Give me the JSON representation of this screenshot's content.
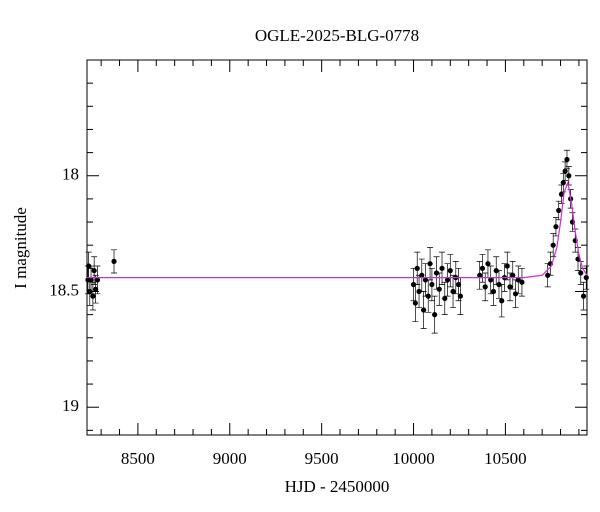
{
  "chart_data": {
    "type": "scatter",
    "title": "OGLE-2025-BLG-0778",
    "xlabel": "HJD - 2450000",
    "ylabel": "I magnitude",
    "xlim": [
      8223,
      10944
    ],
    "ylim": [
      17.5,
      19.12
    ],
    "y_inverted": true,
    "xticks": [
      8500,
      9000,
      9500,
      10000,
      10500
    ],
    "xminorticks": [
      8300,
      8400,
      8600,
      8700,
      8800,
      8900,
      9100,
      9200,
      9300,
      9400,
      9600,
      9700,
      9800,
      9900,
      10100,
      10200,
      10300,
      10400,
      10600,
      10700,
      10800,
      10900
    ],
    "yticks": [
      18,
      18.5,
      19
    ],
    "yminorticks": [
      17.6,
      17.7,
      17.8,
      17.9,
      18.1,
      18.2,
      18.3,
      18.4,
      18.6,
      18.7,
      18.8,
      18.9,
      19.1
    ],
    "series": [
      {
        "color": "#000000",
        "x": [
          8228,
          8232,
          8238,
          8245,
          8255,
          8262,
          8270,
          8280,
          8370,
          10000,
          10010,
          10020,
          10030,
          10045,
          10055,
          10065,
          10080,
          10090,
          10100,
          10115,
          10125,
          10140,
          10155,
          10170,
          10185,
          10200,
          10215,
          10230,
          10245,
          10255,
          10360,
          10375,
          10390,
          10405,
          10420,
          10435,
          10450,
          10465,
          10480,
          10495,
          10510,
          10525,
          10540,
          10555,
          10570,
          10590,
          10730,
          10745,
          10760,
          10775,
          10790,
          10805,
          10815,
          10825,
          10835,
          10845,
          10855,
          10865,
          10880,
          10895,
          10910,
          10925,
          10940
        ],
        "values": [
          18.45,
          18.39,
          18.5,
          18.45,
          18.52,
          18.41,
          18.49,
          18.45,
          18.37,
          18.47,
          18.55,
          18.4,
          18.5,
          18.43,
          18.58,
          18.45,
          18.52,
          18.38,
          18.47,
          18.6,
          18.42,
          18.49,
          18.4,
          18.53,
          18.45,
          18.41,
          18.5,
          18.44,
          18.47,
          18.52,
          18.43,
          18.4,
          18.48,
          18.38,
          18.45,
          18.5,
          18.41,
          18.47,
          18.54,
          18.44,
          18.39,
          18.48,
          18.43,
          18.51,
          18.45,
          18.46,
          18.43,
          18.38,
          18.3,
          18.22,
          18.15,
          18.08,
          18.03,
          17.98,
          17.93,
          18.0,
          18.1,
          18.2,
          18.28,
          18.36,
          18.42,
          18.52,
          18.44
        ],
        "errors": [
          0.06,
          0.06,
          0.06,
          0.06,
          0.06,
          0.06,
          0.06,
          0.06,
          0.05,
          0.07,
          0.08,
          0.07,
          0.07,
          0.07,
          0.08,
          0.07,
          0.07,
          0.07,
          0.07,
          0.08,
          0.07,
          0.07,
          0.07,
          0.07,
          0.07,
          0.07,
          0.07,
          0.07,
          0.07,
          0.08,
          0.06,
          0.06,
          0.06,
          0.06,
          0.06,
          0.06,
          0.06,
          0.06,
          0.07,
          0.06,
          0.06,
          0.06,
          0.06,
          0.06,
          0.06,
          0.06,
          0.05,
          0.05,
          0.05,
          0.04,
          0.04,
          0.04,
          0.04,
          0.04,
          0.04,
          0.04,
          0.04,
          0.04,
          0.05,
          0.05,
          0.05,
          0.06,
          0.05
        ]
      },
      {
        "type": "line",
        "color": "#cc33cc",
        "x": [
          8223,
          10600,
          10700,
          10750,
          10780,
          10800,
          10820,
          10840,
          10860,
          10880,
          10900,
          10920,
          10944
        ],
        "values": [
          18.44,
          18.44,
          18.43,
          18.39,
          18.31,
          18.2,
          18.07,
          18.03,
          18.12,
          18.24,
          18.34,
          18.4,
          18.43
        ]
      }
    ]
  }
}
